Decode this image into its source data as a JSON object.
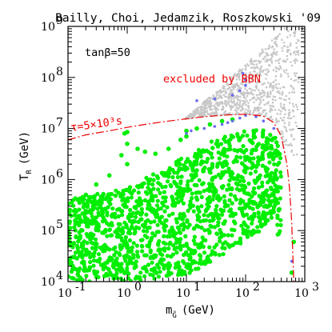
{
  "chart_data": {
    "type": "scatter",
    "title": "Bailly, Choi, Jedamzik, Roszkowski '09",
    "xlabel": "m",
    "xlabel_sub": "G̃",
    "xlabel_unit": "(GeV)",
    "ylabel": "T",
    "ylabel_sub": "R",
    "ylabel_unit": "(GeV)",
    "x_scale": "log",
    "y_scale": "log",
    "xlim": [
      0.1,
      1000
    ],
    "ylim": [
      10000,
      1000000000
    ],
    "x_ticks": [
      {
        "value": 0.1,
        "base": "10",
        "exp": "-1"
      },
      {
        "value": 1,
        "base": "10",
        "exp": "0"
      },
      {
        "value": 10,
        "base": "10",
        "exp": "1"
      },
      {
        "value": 100,
        "base": "10",
        "exp": "2"
      },
      {
        "value": 1000,
        "base": "10",
        "exp": "3"
      }
    ],
    "y_ticks": [
      {
        "value": 10000,
        "base": "10",
        "exp": "4"
      },
      {
        "value": 100000,
        "base": "10",
        "exp": "5"
      },
      {
        "value": 1000000,
        "base": "10",
        "exp": "6"
      },
      {
        "value": 10000000,
        "base": "10",
        "exp": "7"
      },
      {
        "value": 100000000,
        "base": "10",
        "exp": "8"
      },
      {
        "value": 1000000000,
        "base": "10",
        "exp": "9"
      }
    ],
    "annotations": {
      "tanbeta": "tanβ=50",
      "excluded": "excluded by BBN",
      "tau": "τ=5×10³s"
    },
    "colors": {
      "allowed": "#00ee00",
      "marginal": "#6a6af0",
      "excluded_points": "#c8c8c8",
      "boundary": "#ee0000"
    },
    "boundary_curve": {
      "name": "τ=5×10³s",
      "points": [
        [
          0.1,
          6000000
        ],
        [
          0.2,
          7500000
        ],
        [
          0.5,
          9000000
        ],
        [
          1,
          10500000
        ],
        [
          2,
          12000000
        ],
        [
          5,
          14000000
        ],
        [
          10,
          15500000
        ],
        [
          20,
          17000000
        ],
        [
          50,
          18500000
        ],
        [
          100,
          19000000
        ],
        [
          200,
          17500000
        ],
        [
          300,
          13000000
        ],
        [
          400,
          7000000
        ],
        [
          500,
          2000000
        ],
        [
          550,
          700000
        ],
        [
          600,
          150000
        ],
        [
          650,
          10000
        ]
      ]
    },
    "series": [
      {
        "key": "allowed",
        "region": {
          "lower_edge": [
            [
              0.1,
              10000
            ],
            [
              1,
              10000
            ],
            [
              10,
              13000
            ],
            [
              100,
              60000
            ],
            [
              300,
              150000
            ],
            [
              450,
              30000
            ]
          ],
          "upper_edge": [
            [
              0.1,
              400000
            ],
            [
              1,
              700000
            ],
            [
              5,
              1800000
            ],
            [
              10,
              3000000
            ],
            [
              30,
              6000000
            ],
            [
              100,
              9000000
            ],
            [
              250,
              9500000
            ],
            [
              400,
              5000000
            ]
          ]
        },
        "extra_points": [
          [
            0.2,
            500000
          ],
          [
            0.3,
            800000
          ],
          [
            0.5,
            1200000
          ],
          [
            0.8,
            3000000
          ],
          [
            0.9,
            8000000
          ],
          [
            1.5,
            4000000
          ],
          [
            2,
            3500000
          ],
          [
            3,
            3200000
          ],
          [
            5,
            4000000
          ],
          [
            8,
            6000000
          ],
          [
            15,
            10000000
          ],
          [
            25,
            12000000
          ],
          [
            40,
            14000000
          ],
          [
            60,
            15000000
          ],
          [
            1,
            2000000
          ],
          [
            1,
            5000000
          ],
          [
            1,
            8500000
          ],
          [
            10,
            7000000
          ],
          [
            10,
            9000000
          ],
          [
            600,
            15000
          ],
          [
            650,
            60000
          ]
        ]
      },
      {
        "key": "marginal",
        "points": [
          [
            10,
            8000000
          ],
          [
            12,
            9000000
          ],
          [
            20,
            10000000
          ],
          [
            30,
            11000000
          ],
          [
            40,
            12000000
          ],
          [
            50,
            13000000
          ],
          [
            60,
            14000000
          ],
          [
            80,
            16000000
          ],
          [
            100,
            18000000
          ],
          [
            150,
            17000000
          ],
          [
            200,
            14000000
          ],
          [
            300,
            10000000
          ],
          [
            15,
            35000000
          ],
          [
            30,
            38000000
          ],
          [
            60,
            45000000
          ],
          [
            80,
            55000000
          ],
          [
            100,
            70000000
          ],
          [
            90,
            120000000
          ],
          [
            100,
            90000000
          ],
          [
            600,
            25000
          ]
        ]
      },
      {
        "key": "excluded_points",
        "region": {
          "points_range": [
            [
              5,
              3000000
            ],
            [
              800,
              1000000000
            ]
          ]
        }
      }
    ]
  }
}
